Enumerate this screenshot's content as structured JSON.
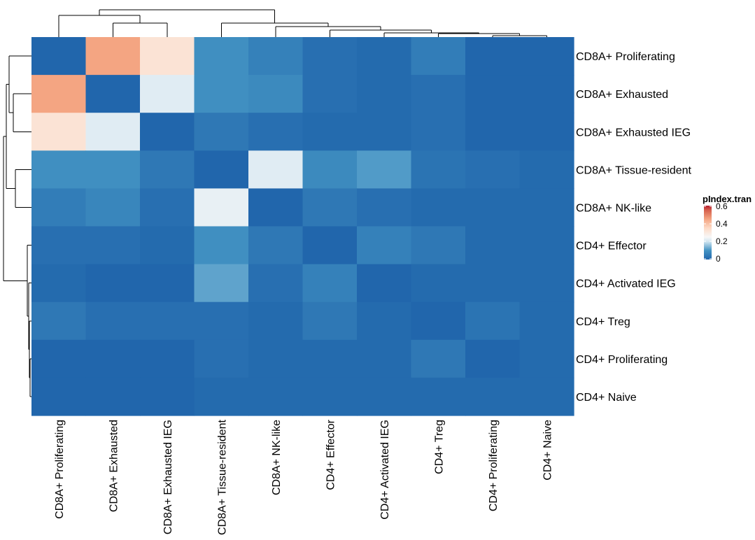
{
  "chart_data": {
    "type": "heatmap",
    "rows": [
      "CD8A+ Proliferating",
      "CD8A+ Exhausted",
      "CD8A+ Exhausted IEG",
      "CD8A+ Tissue-resident",
      "CD8A+ NK-like",
      "CD4+ Effector",
      "CD4+ Activated IEG",
      "CD4+ Treg",
      "CD4+ Proliferating",
      "CD4+ Naive"
    ],
    "columns": [
      "CD8A+ Proliferating",
      "CD8A+ Exhausted",
      "CD8A+ Exhausted IEG",
      "CD8A+ Tissue-resident",
      "CD8A+ NK-like",
      "CD4+ Effector",
      "CD4+ Activated IEG",
      "CD4+ Treg",
      "CD4+ Proliferating",
      "CD4+ Naive"
    ],
    "values": [
      [
        0.0,
        0.45,
        0.32,
        0.09,
        0.06,
        0.02,
        0.01,
        0.05,
        0.0,
        0.0
      ],
      [
        0.45,
        0.0,
        0.22,
        0.09,
        0.08,
        0.02,
        0.01,
        0.02,
        0.0,
        0.0
      ],
      [
        0.32,
        0.22,
        0.0,
        0.04,
        0.02,
        0.01,
        0.01,
        0.02,
        0.0,
        0.0
      ],
      [
        0.09,
        0.09,
        0.04,
        0.0,
        0.22,
        0.08,
        0.11,
        0.03,
        0.02,
        0.01
      ],
      [
        0.05,
        0.07,
        0.02,
        0.23,
        0.0,
        0.04,
        0.02,
        0.01,
        0.01,
        0.01
      ],
      [
        0.02,
        0.02,
        0.01,
        0.09,
        0.04,
        0.0,
        0.06,
        0.04,
        0.01,
        0.01
      ],
      [
        0.01,
        0.0,
        0.0,
        0.12,
        0.02,
        0.06,
        0.0,
        0.01,
        0.01,
        0.01
      ],
      [
        0.04,
        0.02,
        0.02,
        0.02,
        0.01,
        0.04,
        0.01,
        0.0,
        0.03,
        0.01
      ],
      [
        0.0,
        0.0,
        0.0,
        0.02,
        0.01,
        0.01,
        0.01,
        0.04,
        0.0,
        0.01
      ],
      [
        0.0,
        0.0,
        0.0,
        0.01,
        0.01,
        0.01,
        0.01,
        0.01,
        0.01,
        0.01
      ]
    ],
    "color_scale": {
      "title": "pIndex.tran",
      "min": 0,
      "max": 0.6,
      "ticks": [
        "0",
        "0.2",
        "0.4",
        "0.6"
      ],
      "tick_values": [
        0,
        0.2,
        0.4,
        0.6
      ],
      "stops": [
        {
          "value": 0.0,
          "color": "#2166ac"
        },
        {
          "value": 0.1,
          "color": "#4393c3"
        },
        {
          "value": 0.2,
          "color": "#d1e5f0"
        },
        {
          "value": 0.25,
          "color": "#f7f7f7"
        },
        {
          "value": 0.35,
          "color": "#fddbc7"
        },
        {
          "value": 0.45,
          "color": "#f4a582"
        },
        {
          "value": 0.55,
          "color": "#d6604d"
        },
        {
          "value": 0.6,
          "color": "#b2182b"
        }
      ]
    },
    "row_dendrogram": true,
    "column_dendrogram": true,
    "legend_position": "right"
  }
}
